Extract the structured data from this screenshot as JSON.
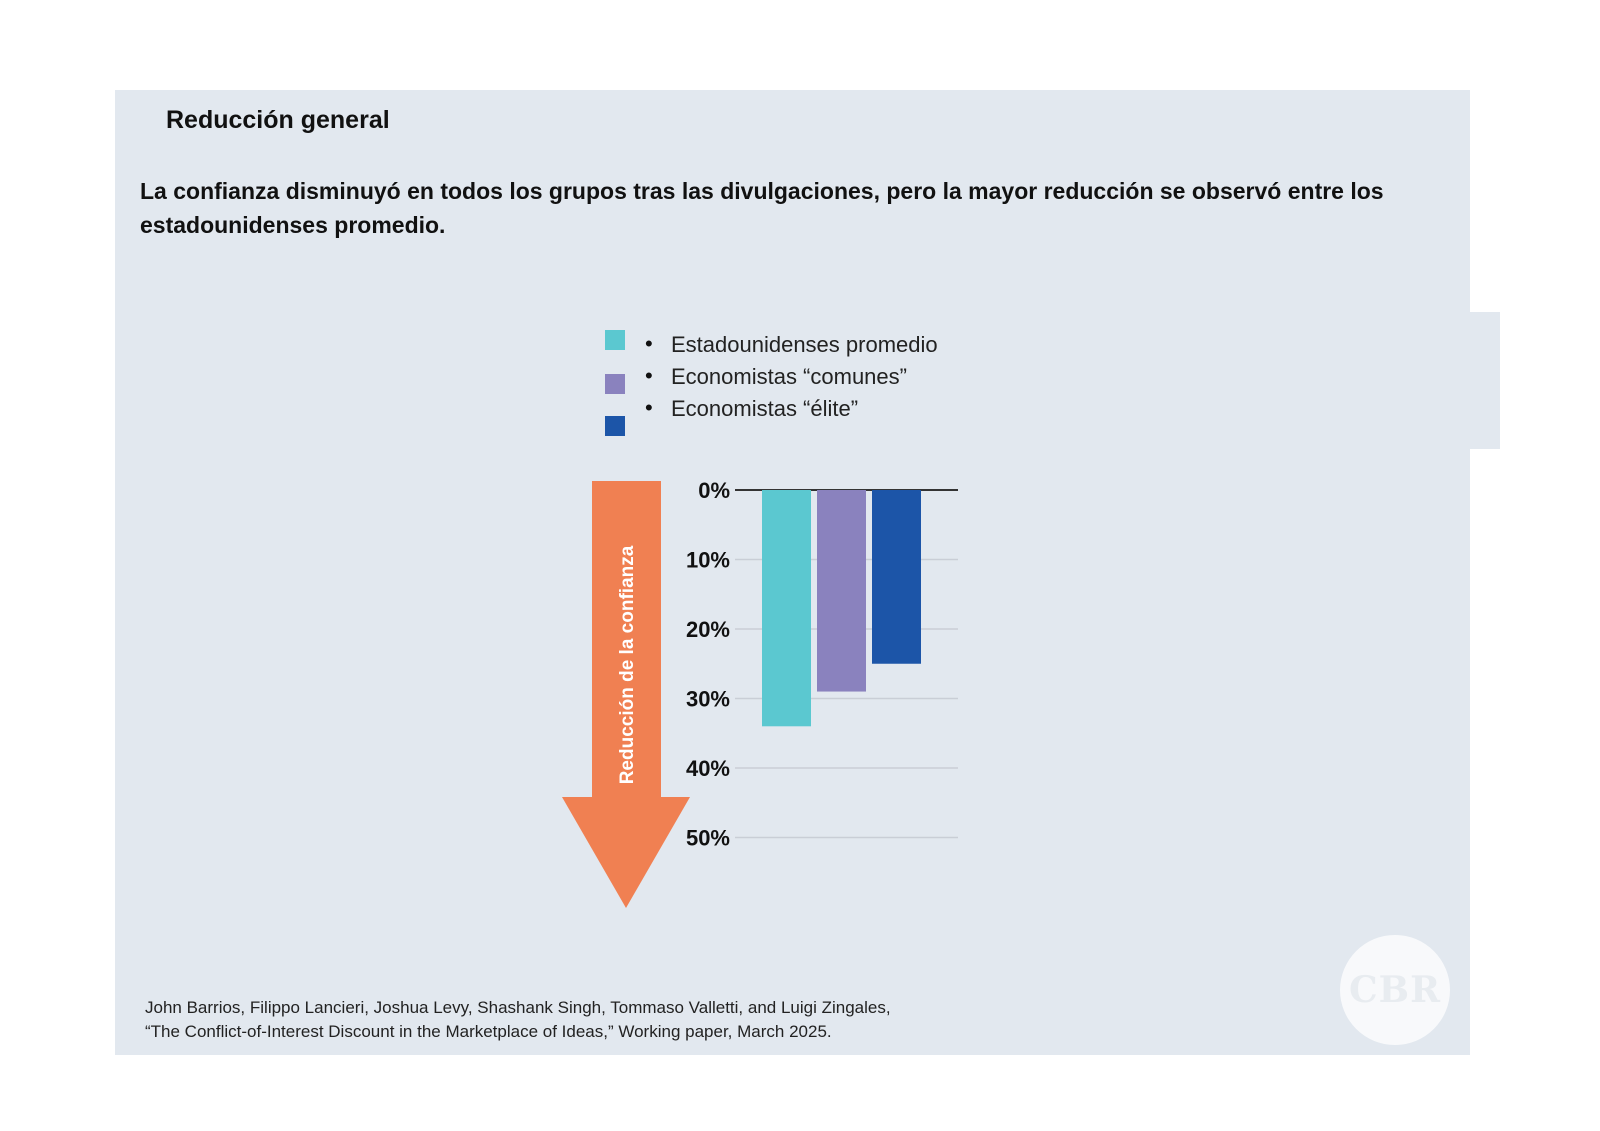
{
  "header": {
    "kicker": "Reducción general",
    "subtitle": "La confianza disminuyó en todos los grupos tras las divulgaciones, pero la mayor reducción se observó entre los estadounidenses promedio."
  },
  "chart_data": {
    "type": "bar",
    "title": "",
    "ylabel": "Reducción de la confianza",
    "xlabel": "",
    "categories": [
      "Estadounidenses promedio",
      "Economistas “comunes”",
      "Economistas “élite”"
    ],
    "series": [
      {
        "values": [
          34,
          29,
          25
        ]
      }
    ],
    "colors": [
      "#5bc8d0",
      "#8a82be",
      "#1c55a8"
    ],
    "ylim": [
      0,
      50
    ],
    "yticks": [
      "0%",
      "10%",
      "20%",
      "30%",
      "40%",
      "50%"
    ],
    "y_axis_inverted": true,
    "grid": true,
    "legend_position": "top",
    "arrow_color": "#f08052"
  },
  "legend": [
    {
      "label": "Estadounidenses promedio",
      "color": "#5bc8d0"
    },
    {
      "label": "Economistas “comunes”",
      "color": "#8a82be"
    },
    {
      "label": "Economistas “élite”",
      "color": "#1c55a8"
    }
  ],
  "credit": {
    "line1": "John Barrios, Filippo Lancieri, Joshua Levy, Shashank Singh, Tommaso Valletti, and Luigi Zingales,",
    "line2": "“The Conflict-of-Interest Discount in the Marketplace of Ideas,” Working paper, March 2025."
  },
  "logo": {
    "text": "CBR"
  }
}
